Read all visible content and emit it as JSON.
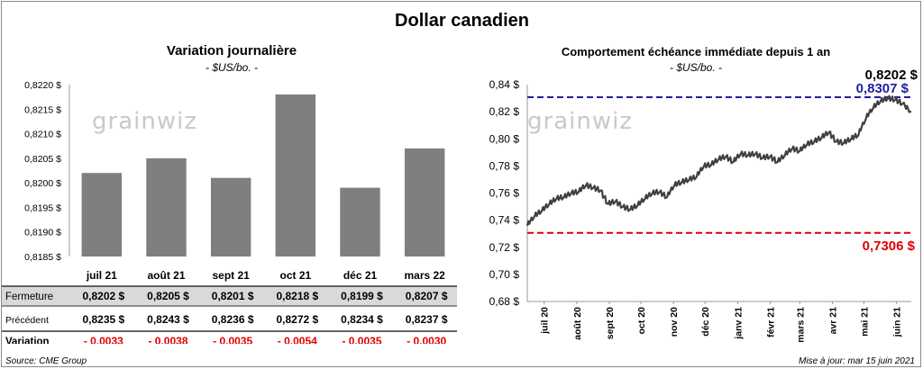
{
  "title": "Dollar canadien",
  "left": {
    "title": "Variation  journalière",
    "subtitle": "- $US/bo. -",
    "watermark": "grainwiz",
    "y_tick_labels": [
      "0,8220 $",
      "0,8215 $",
      "0,8210 $",
      "0,8205 $",
      "0,8200 $",
      "0,8195 $",
      "0,8190 $",
      "0,8185 $"
    ],
    "rows": [
      {
        "label": "Fermeture",
        "values": [
          "0,8202  $",
          "0,8205  $",
          "0,8201  $",
          "0,8218  $",
          "0,8199  $",
          "0,8207  $"
        ]
      },
      {
        "label": "Précédent",
        "values": [
          "0,8235  $",
          "0,8243  $",
          "0,8236  $",
          "0,8272  $",
          "0,8234  $",
          "0,8237  $"
        ]
      },
      {
        "label": "Variation",
        "values": [
          "- 0,0033",
          "- 0,0038",
          "- 0,0035",
          "- 0,0054",
          "- 0,0035",
          "- 0,0030"
        ]
      }
    ]
  },
  "right": {
    "title": "Comportement échéance immédiate depuis 1 an",
    "subtitle": "- $US/bo. -",
    "watermark": "grainwiz",
    "y_tick_labels": [
      "0,84 $",
      "0,82 $",
      "0,80 $",
      "0,78 $",
      "0,76 $",
      "0,74 $",
      "0,72 $",
      "0,70 $",
      "0,68 $"
    ],
    "x_tick_labels": [
      "juil 20",
      "août 20",
      "sept 20",
      "oct 20",
      "nov 20",
      "déc 20",
      "janv 21",
      "févr 21",
      "mars 21",
      "avr 21",
      "mai 21",
      "juin 21"
    ],
    "last_label": "0,8202 $",
    "high_label": "0,8307 $",
    "low_label": "0,7306 $"
  },
  "footer": {
    "source": "Source: CME Group",
    "updated": "Mise à jour: mar 15 juin 2021"
  },
  "colors": {
    "bar": "#7f7f7f",
    "line": "#404040",
    "high": "#1f1fa0",
    "low": "#e00000",
    "negative": "#e00000",
    "row_shade": "#d9d9d9"
  },
  "chart_data": [
    {
      "type": "bar",
      "title": "Variation  journalière",
      "categories": [
        "juil 21",
        "août 21",
        "sept 21",
        "oct 21",
        "déc 21",
        "mars 22"
      ],
      "values": [
        0.8202,
        0.8205,
        0.8201,
        0.8218,
        0.8199,
        0.8207
      ],
      "ylim": [
        0.8185,
        0.822
      ],
      "grid": false
    },
    {
      "type": "line",
      "title": "Comportement échéance immédiate depuis 1 an",
      "ylim": [
        0.68,
        0.84
      ],
      "x": [
        "2020-06-15",
        "2020-06-22",
        "2020-06-29",
        "2020-07-06",
        "2020-07-13",
        "2020-07-20",
        "2020-07-27",
        "2020-08-03",
        "2020-08-10",
        "2020-08-17",
        "2020-08-24",
        "2020-08-31",
        "2020-09-07",
        "2020-09-14",
        "2020-09-21",
        "2020-09-28",
        "2020-10-05",
        "2020-10-12",
        "2020-10-19",
        "2020-10-26",
        "2020-11-02",
        "2020-11-09",
        "2020-11-16",
        "2020-11-23",
        "2020-11-30",
        "2020-12-07",
        "2020-12-14",
        "2020-12-21",
        "2020-12-28",
        "2021-01-04",
        "2021-01-11",
        "2021-01-18",
        "2021-01-25",
        "2021-02-01",
        "2021-02-08",
        "2021-02-15",
        "2021-02-22",
        "2021-03-01",
        "2021-03-08",
        "2021-03-15",
        "2021-03-22",
        "2021-03-29",
        "2021-04-05",
        "2021-04-12",
        "2021-04-19",
        "2021-04-26",
        "2021-05-03",
        "2021-05-10",
        "2021-05-17",
        "2021-05-24",
        "2021-05-31",
        "2021-06-07",
        "2021-06-15"
      ],
      "values": [
        0.736,
        0.743,
        0.747,
        0.752,
        0.756,
        0.757,
        0.76,
        0.761,
        0.766,
        0.764,
        0.762,
        0.752,
        0.754,
        0.75,
        0.748,
        0.751,
        0.756,
        0.76,
        0.761,
        0.757,
        0.766,
        0.768,
        0.77,
        0.772,
        0.78,
        0.781,
        0.785,
        0.787,
        0.783,
        0.789,
        0.788,
        0.789,
        0.786,
        0.787,
        0.783,
        0.788,
        0.793,
        0.791,
        0.796,
        0.798,
        0.801,
        0.805,
        0.798,
        0.797,
        0.8,
        0.803,
        0.815,
        0.823,
        0.828,
        0.83,
        0.829,
        0.826,
        0.8202
      ],
      "annotations": [
        {
          "label": "0,8307 $",
          "y": 0.8307,
          "style": "dashed",
          "color": "#1f1fa0"
        },
        {
          "label": "0,7306 $",
          "y": 0.7306,
          "style": "dashed",
          "color": "#e00000"
        },
        {
          "label": "0,8202 $",
          "y": 0.8202
        }
      ]
    }
  ]
}
